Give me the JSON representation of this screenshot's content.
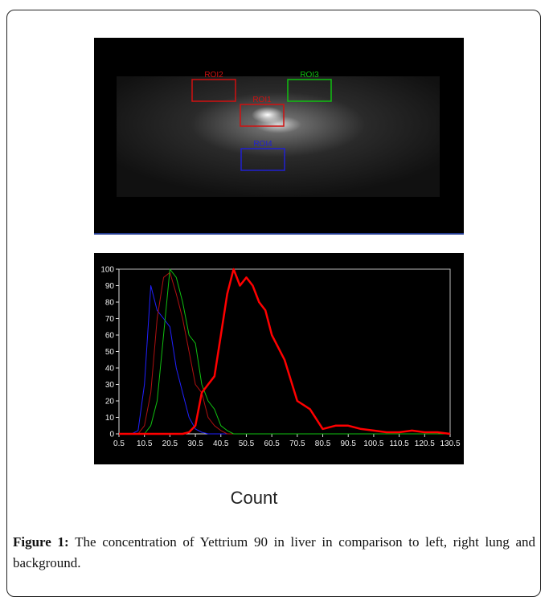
{
  "image": {
    "rois": [
      {
        "label": "ROI2",
        "color": "#d01010"
      },
      {
        "label": "ROI3",
        "color": "#10c010"
      },
      {
        "label": "ROI1",
        "color": "#d01010"
      },
      {
        "label": "ROI4",
        "color": "#2020d0"
      }
    ]
  },
  "chart_data": {
    "type": "line",
    "xlabel": "Count",
    "x": [
      0.5,
      3,
      5.5,
      8,
      10.5,
      13,
      15.5,
      18,
      20.5,
      23,
      25.5,
      28,
      30.5,
      33,
      35.5,
      38,
      40.5,
      43,
      45.5,
      48,
      50.5,
      53,
      55.5,
      58,
      60.5,
      65.5,
      70.5,
      75.5,
      80.5,
      85.5,
      90.5,
      95.5,
      100.5,
      105.5,
      110.5,
      115.5,
      120.5,
      125.5,
      130.5
    ],
    "series": [
      {
        "color": "#2020ff",
        "values": [
          0,
          0,
          0,
          2,
          30,
          90,
          75,
          70,
          65,
          40,
          25,
          10,
          3,
          1,
          0,
          0,
          0,
          0,
          0,
          0,
          0,
          0,
          0,
          0,
          0,
          0,
          0,
          0,
          0,
          0,
          0,
          0,
          0,
          0,
          0,
          0,
          0,
          0,
          0
        ]
      },
      {
        "color": "#b01010",
        "values": [
          0,
          0,
          0,
          0,
          5,
          25,
          70,
          95,
          98,
          85,
          70,
          50,
          30,
          25,
          10,
          5,
          2,
          0,
          0,
          0,
          0,
          0,
          0,
          0,
          0,
          0,
          0,
          0,
          0,
          0,
          0,
          0,
          0,
          0,
          0,
          0,
          0,
          0,
          0
        ]
      },
      {
        "color": "#10c010",
        "values": [
          0,
          0,
          0,
          0,
          0,
          5,
          20,
          60,
          100,
          95,
          80,
          60,
          55,
          30,
          20,
          15,
          5,
          2,
          0,
          0,
          0,
          0,
          0,
          0,
          0,
          0,
          0,
          0,
          0,
          0,
          0,
          0,
          0,
          0,
          0,
          0,
          0,
          0,
          0
        ]
      },
      {
        "color": "#ff0000",
        "width": 2.5,
        "values": [
          0,
          0,
          0,
          0,
          0,
          0,
          0,
          0,
          0,
          0,
          0,
          1,
          5,
          25,
          30,
          35,
          60,
          85,
          100,
          90,
          95,
          90,
          80,
          75,
          60,
          45,
          20,
          15,
          3,
          5,
          5,
          3,
          2,
          1,
          1,
          2,
          1,
          1,
          0
        ]
      }
    ],
    "xlim": [
      0.5,
      130.5
    ],
    "xticks": [
      0.5,
      10.5,
      20.5,
      30.5,
      40.5,
      50.5,
      60.5,
      70.5,
      80.5,
      90.5,
      100.5,
      110.5,
      120.5,
      130.5
    ],
    "ylim": [
      0,
      100
    ],
    "yticks": [
      0,
      10,
      20,
      30,
      40,
      50,
      60,
      70,
      80,
      90,
      100
    ]
  },
  "figure": {
    "label": "Figure 1:",
    "caption": "The concentration of Yettrium 90 in liver in comparison to left, right lung and background."
  }
}
